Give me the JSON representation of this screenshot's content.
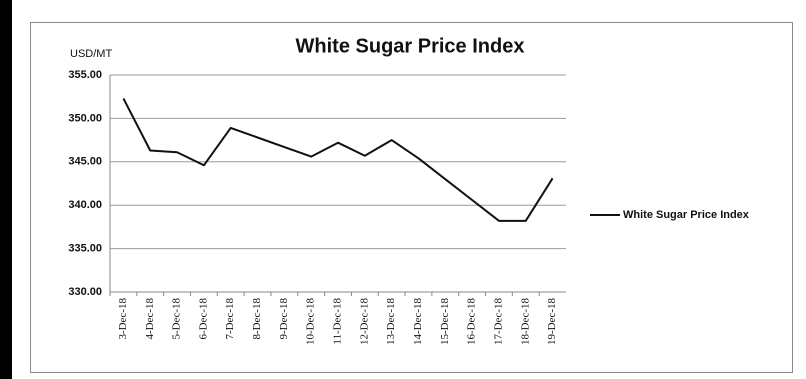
{
  "chart_data": {
    "type": "line",
    "title": "White Sugar Price Index",
    "y_label": "USD/MT",
    "categories": [
      "3-Dec-18",
      "4-Dec-18",
      "5-Dec-18",
      "6-Dec-18",
      "7-Dec-18",
      "8-Dec-18",
      "9-Dec-18",
      "10-Dec-18",
      "11-Dec-18",
      "12-Dec-18",
      "13-Dec-18",
      "14-Dec-18",
      "15-Dec-18",
      "16-Dec-18",
      "17-Dec-18",
      "18-Dec-18",
      "19-Dec-18"
    ],
    "series": [
      {
        "name": "White Sugar Price Index",
        "color": "#111111",
        "values": [
          352.3,
          346.3,
          346.1,
          344.6,
          348.9,
          347.8,
          346.7,
          345.6,
          347.2,
          345.7,
          347.5,
          345.4,
          343.0,
          340.6,
          338.2,
          338.2,
          343.1
        ]
      }
    ],
    "ylim": [
      330,
      355
    ],
    "yticks": [
      {
        "value": 330,
        "label": "330.00"
      },
      {
        "value": 335,
        "label": "335.00"
      },
      {
        "value": 340,
        "label": "340.00"
      },
      {
        "value": 345,
        "label": "345.00"
      },
      {
        "value": 350,
        "label": "350.00"
      },
      {
        "value": 355,
        "label": "355.00"
      }
    ],
    "grid": true,
    "legend": "right"
  }
}
